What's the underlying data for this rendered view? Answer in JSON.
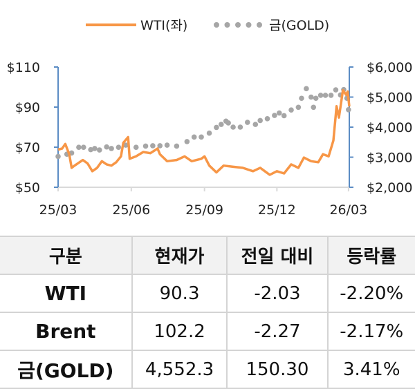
{
  "chart_data": {
    "type": "line",
    "legend": {
      "position": "top",
      "entries": [
        "WTI(좌)",
        "금(GOLD)"
      ]
    },
    "x_ticks": [
      "25/03",
      "25/06",
      "25/09",
      "25/12",
      "26/03"
    ],
    "x_tick_dates": [
      "2025-03-01",
      "2025-06-01",
      "2025-09-01",
      "2025-12-01",
      "2026-03-01"
    ],
    "xlim": [
      "2025-03-01",
      "2026-03-02"
    ],
    "y_left": {
      "ticks": [
        "$110",
        "$90",
        "$70",
        "$50"
      ],
      "tick_values": [
        110,
        90,
        70,
        50
      ],
      "lim": [
        50,
        110
      ]
    },
    "y_right": {
      "ticks": [
        "$6,000",
        "$5,000",
        "$4,000",
        "$3,000",
        "$2,000"
      ],
      "tick_values": [
        6000,
        5000,
        4000,
        3000,
        2000
      ],
      "lim": [
        2000,
        6000
      ]
    },
    "grid": false,
    "colors": {
      "wti": "#f79646",
      "gold": "#a6a6a6",
      "axis": "#5b8cc4"
    },
    "series": [
      {
        "name": "WTI(좌)",
        "axis": "left",
        "style": "line",
        "points": [
          [
            "2025-03-01",
            68.8
          ],
          [
            "2025-03-06",
            69.3
          ],
          [
            "2025-03-10",
            71.6
          ],
          [
            "2025-03-15",
            66.5
          ],
          [
            "2025-03-18",
            59.7
          ],
          [
            "2025-03-22",
            60.9
          ],
          [
            "2025-04-01",
            63.6
          ],
          [
            "2025-04-07",
            61.9
          ],
          [
            "2025-04-13",
            58.0
          ],
          [
            "2025-04-19",
            59.7
          ],
          [
            "2025-04-25",
            63.0
          ],
          [
            "2025-05-01",
            61.4
          ],
          [
            "2025-05-07",
            60.8
          ],
          [
            "2025-05-13",
            62.5
          ],
          [
            "2025-05-19",
            65.4
          ],
          [
            "2025-05-22",
            72.2
          ],
          [
            "2025-05-28",
            75.0
          ],
          [
            "2025-05-30",
            64.2
          ],
          [
            "2025-06-07",
            65.4
          ],
          [
            "2025-06-16",
            67.6
          ],
          [
            "2025-06-25",
            67.0
          ],
          [
            "2025-07-04",
            69.3
          ],
          [
            "2025-07-07",
            66.5
          ],
          [
            "2025-07-16",
            63.0
          ],
          [
            "2025-07-28",
            63.6
          ],
          [
            "2025-08-07",
            65.4
          ],
          [
            "2025-08-16",
            63.0
          ],
          [
            "2025-08-28",
            64.2
          ],
          [
            "2025-09-01",
            65.4
          ],
          [
            "2025-09-07",
            60.8
          ],
          [
            "2025-09-16",
            57.4
          ],
          [
            "2025-09-25",
            60.8
          ],
          [
            "2025-10-07",
            60.2
          ],
          [
            "2025-10-19",
            59.7
          ],
          [
            "2025-11-01",
            58.0
          ],
          [
            "2025-11-10",
            59.7
          ],
          [
            "2025-11-22",
            56.2
          ],
          [
            "2025-12-01",
            58.0
          ],
          [
            "2025-12-10",
            56.9
          ],
          [
            "2025-12-19",
            61.4
          ],
          [
            "2025-12-28",
            59.7
          ],
          [
            "2026-01-04",
            64.8
          ],
          [
            "2026-01-13",
            63.0
          ],
          [
            "2026-01-22",
            62.5
          ],
          [
            "2026-01-28",
            66.5
          ],
          [
            "2026-02-04",
            65.4
          ],
          [
            "2026-02-10",
            73.3
          ],
          [
            "2026-02-14",
            90.4
          ],
          [
            "2026-02-17",
            84.8
          ],
          [
            "2026-02-22",
            98.4
          ],
          [
            "2026-02-26",
            96.1
          ],
          [
            "2026-02-28",
            97.8
          ],
          [
            "2026-03-02",
            90.3
          ]
        ]
      },
      {
        "name": "금(GOLD)",
        "axis": "right",
        "style": "dots",
        "points": [
          [
            "2025-03-01",
            3025
          ],
          [
            "2025-03-12",
            3100
          ],
          [
            "2025-03-18",
            3140
          ],
          [
            "2025-03-27",
            3330
          ],
          [
            "2025-04-02",
            3330
          ],
          [
            "2025-04-11",
            3250
          ],
          [
            "2025-04-16",
            3290
          ],
          [
            "2025-04-22",
            3240
          ],
          [
            "2025-05-01",
            3340
          ],
          [
            "2025-05-07",
            3290
          ],
          [
            "2025-05-16",
            3330
          ],
          [
            "2025-05-25",
            3400
          ],
          [
            "2025-06-07",
            3330
          ],
          [
            "2025-06-19",
            3370
          ],
          [
            "2025-06-28",
            3380
          ],
          [
            "2025-07-07",
            3380
          ],
          [
            "2025-07-16",
            3400
          ],
          [
            "2025-07-28",
            3370
          ],
          [
            "2025-08-10",
            3520
          ],
          [
            "2025-08-19",
            3670
          ],
          [
            "2025-08-28",
            3670
          ],
          [
            "2025-09-07",
            3800
          ],
          [
            "2025-09-16",
            3990
          ],
          [
            "2025-09-22",
            4090
          ],
          [
            "2025-09-28",
            4200
          ],
          [
            "2025-10-01",
            4140
          ],
          [
            "2025-10-07",
            4000
          ],
          [
            "2025-10-16",
            4000
          ],
          [
            "2025-10-25",
            4160
          ],
          [
            "2025-11-04",
            4090
          ],
          [
            "2025-11-10",
            4220
          ],
          [
            "2025-11-19",
            4280
          ],
          [
            "2025-11-28",
            4390
          ],
          [
            "2025-12-04",
            4470
          ],
          [
            "2025-12-10",
            4380
          ],
          [
            "2025-12-19",
            4570
          ],
          [
            "2025-12-28",
            4660
          ],
          [
            "2026-01-01",
            4960
          ],
          [
            "2026-01-07",
            5280
          ],
          [
            "2026-01-13",
            5000
          ],
          [
            "2026-01-16",
            4660
          ],
          [
            "2026-01-19",
            4960
          ],
          [
            "2026-01-25",
            5060
          ],
          [
            "2026-01-31",
            5060
          ],
          [
            "2026-02-07",
            5060
          ],
          [
            "2026-02-13",
            5240
          ],
          [
            "2026-02-19",
            5070
          ],
          [
            "2026-02-23",
            5250
          ],
          [
            "2026-02-27",
            4960
          ],
          [
            "2026-03-01",
            4580
          ]
        ]
      }
    ]
  },
  "table": {
    "headers": [
      "구분",
      "현재가",
      "전일 대비",
      "등락률"
    ],
    "rows": [
      [
        "WTI",
        "90.3",
        "-2.03",
        "-2.20%"
      ],
      [
        "Brent",
        "102.2",
        "-2.27",
        "-2.17%"
      ],
      [
        "금(GOLD)",
        "4,552.3",
        "150.30",
        "3.41%"
      ]
    ]
  }
}
